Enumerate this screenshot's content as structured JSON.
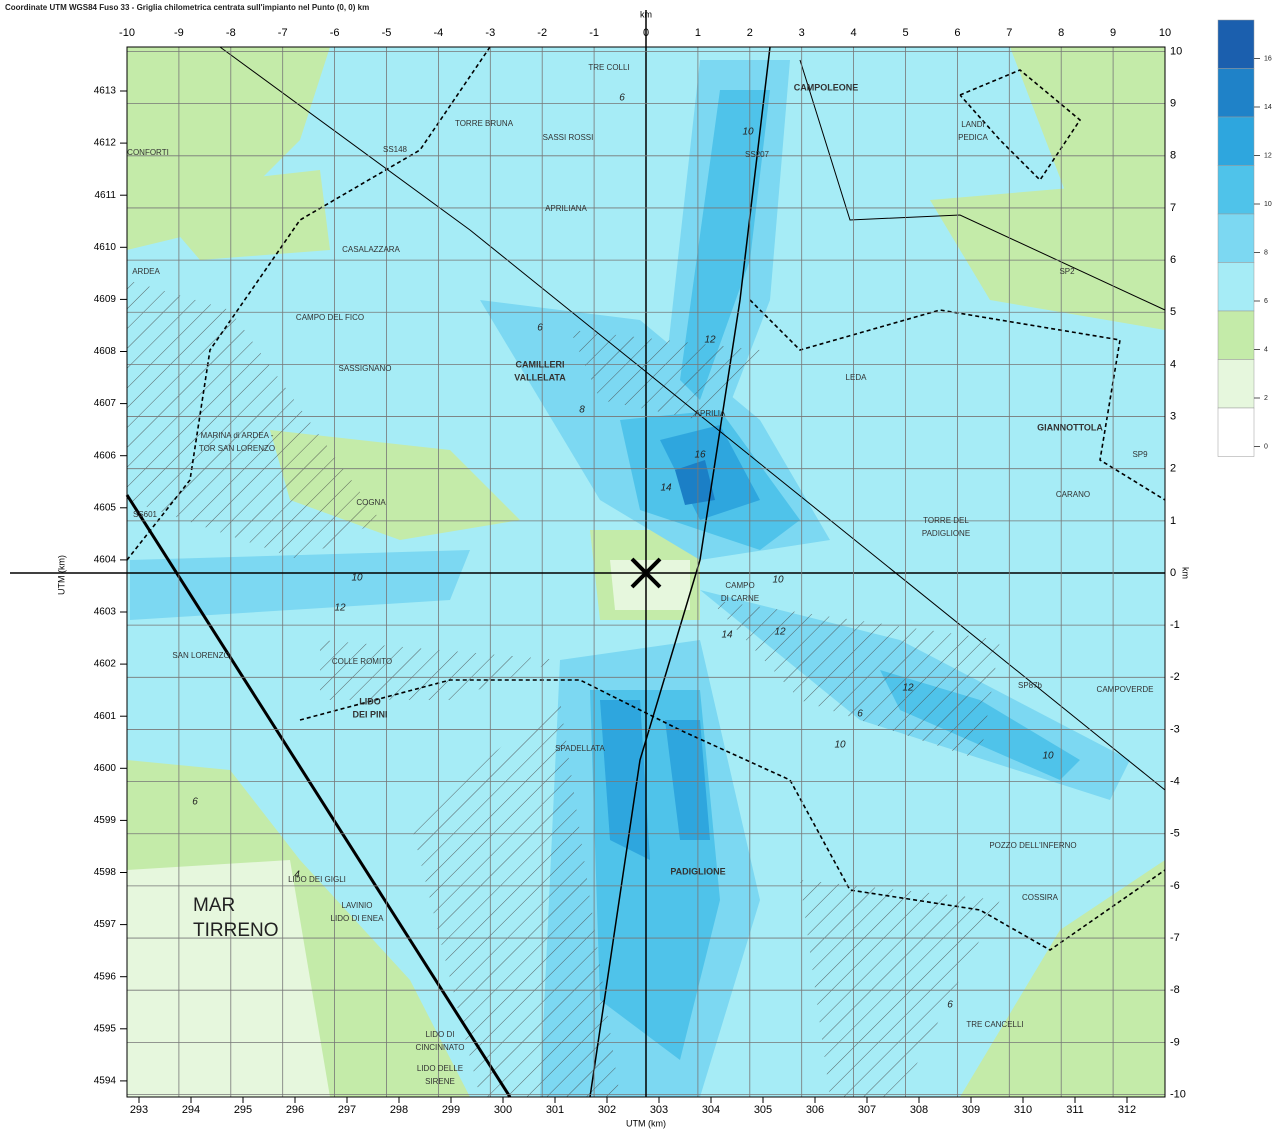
{
  "header": {
    "title": "Coordinate UTM WGS84 Fuso 33  -  Griglia chilometrica centrata sull'impianto nel Punto (0, 0) km"
  },
  "axes": {
    "top_unit": "km",
    "right_unit": "km",
    "left_label": "UTM (km)",
    "bottom_label": "UTM (km)",
    "km_ticks": [
      -10,
      -9,
      -8,
      -7,
      -6,
      -5,
      -4,
      -3,
      -2,
      -1,
      0,
      1,
      2,
      3,
      4,
      5,
      6,
      7,
      8,
      9,
      10
    ],
    "northing_ticks": [
      4594,
      4595,
      4596,
      4597,
      4598,
      4599,
      4600,
      4601,
      4602,
      4603,
      4604,
      4605,
      4606,
      4607,
      4608,
      4609,
      4610,
      4611,
      4612,
      4613
    ],
    "easting_ticks": [
      293,
      294,
      295,
      296,
      297,
      298,
      299,
      300,
      301,
      302,
      303,
      304,
      305,
      306,
      307,
      308,
      309,
      310,
      311,
      312
    ]
  },
  "legend": {
    "levels": [
      16,
      14,
      12,
      10,
      8,
      6,
      4,
      2,
      0
    ]
  },
  "sea": [
    "MAR",
    "TIRRENO"
  ],
  "places": [
    [
      "TRE COLLI"
    ],
    [
      "CAMPOLEONE"
    ],
    [
      "TORRE BRUNA"
    ],
    [
      "SASSI ROSSI"
    ],
    [
      "CONFORTI"
    ],
    [
      "APRILIANA"
    ],
    [
      "CASALAZZARA"
    ],
    [
      "ARDEA"
    ],
    [
      "CAMPO DEL FICO"
    ],
    [
      "LANDI",
      "PEDICA"
    ],
    [
      "CAMILLERI",
      "VALLELATA"
    ],
    [
      "SASSIGNANO"
    ],
    [
      "LEDA"
    ],
    [
      "APRILIA"
    ],
    [
      "MARINA di ARDEA -",
      "TOR SAN LORENZO"
    ],
    [
      "GIANNOTTOLA"
    ],
    [
      "CARANO"
    ],
    [
      "COGNA"
    ],
    [
      "TORRE DEL",
      "PADIGLIONE"
    ],
    [
      "CAMPO",
      "DI CARNE"
    ],
    [
      "SAN LORENZO"
    ],
    [
      "COLLE ROMITO"
    ],
    [
      "CAMPOVERDE"
    ],
    [
      "LIDO",
      "DEI PINI"
    ],
    [
      "SPADELLATA"
    ],
    [
      "POZZO DELL'INFERNO"
    ],
    [
      "PADIGLIONE"
    ],
    [
      "LIDO DEI GIGLI"
    ],
    [
      "COSSIRA"
    ],
    [
      "LAVINIO",
      "LIDO DI ENEA"
    ],
    [
      "TRE CANCELLI"
    ],
    [
      "LIDO DI",
      "CINCINNATO"
    ],
    [
      "LIDO DELLE",
      "SIRENE"
    ],
    [
      "SS148"
    ],
    [
      "SP87b"
    ],
    [
      "SS207"
    ],
    [
      "SP2"
    ],
    [
      "SP9"
    ],
    [
      "SS601"
    ]
  ],
  "contour_labels": [
    6,
    10,
    6,
    8,
    12,
    14,
    16,
    10,
    12,
    10,
    12,
    12,
    10,
    6,
    6,
    4,
    10,
    14,
    6
  ]
}
